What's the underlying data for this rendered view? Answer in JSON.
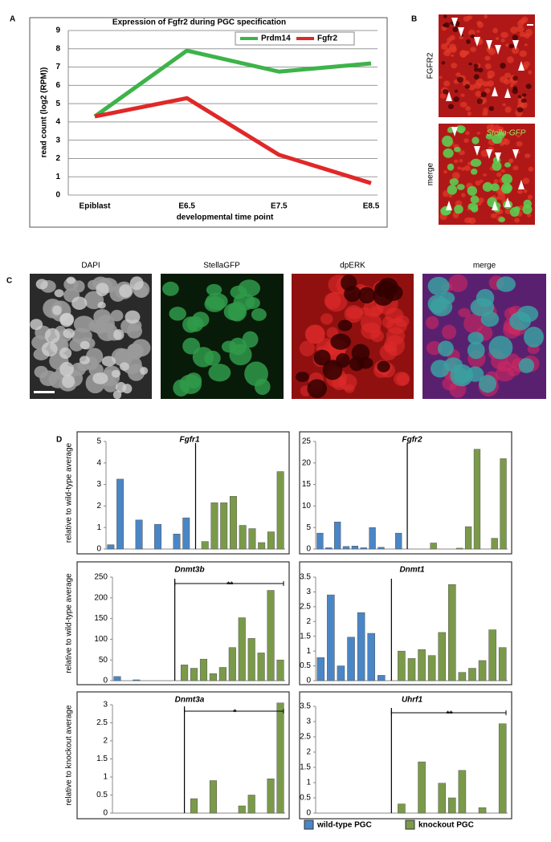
{
  "figure": {
    "panels": [
      "A",
      "B",
      "C",
      "D"
    ],
    "b_labels": [
      "FGFR2",
      "merge",
      "Stella-GFP"
    ],
    "c_labels": [
      "DAPI",
      "StellaGFP",
      "dpERK",
      "merge"
    ],
    "legend": [
      {
        "name": "wild-type PGC",
        "color": "#4a86c6"
      },
      {
        "name": "knockout PGC",
        "color": "#7a9a4a"
      }
    ]
  },
  "chart_data": [
    {
      "type": "line",
      "title": "Expression of Fgfr2 during PGC specification",
      "categories": [
        "Epiblast",
        "E6.5",
        "E7.5",
        "E8.5"
      ],
      "series": [
        {
          "name": "Prdm14",
          "color": "#3db34a",
          "values": [
            4.3,
            7.9,
            6.75,
            7.2
          ]
        },
        {
          "name": "Fgfr2",
          "color": "#e02828",
          "values": [
            4.3,
            5.3,
            2.2,
            0.65
          ]
        }
      ],
      "ylabel": "read count (log2 (RPM))",
      "xlabel": "developmental time point",
      "ylim": [
        0,
        9
      ],
      "yticks": [
        0,
        1,
        2,
        3,
        4,
        5,
        6,
        7,
        8,
        9
      ],
      "grid": true,
      "legend_position": "top right"
    },
    {
      "type": "bar",
      "title": "Fgfr1",
      "ylabel": "relative to wild-type average",
      "series": [
        {
          "color": "#4a86c6",
          "values": [
            0.2,
            3.25,
            0,
            1.35,
            0,
            1.15,
            0,
            0.7,
            1.45
          ]
        },
        {
          "color": "#7a9a4a",
          "values": [
            0.35,
            2.15,
            2.15,
            2.45,
            1.1,
            0.95,
            0.3,
            0.8,
            3.6
          ]
        }
      ],
      "ylim": [
        0,
        5
      ],
      "yticks": [
        0,
        1,
        2,
        3,
        4,
        5
      ]
    },
    {
      "type": "bar",
      "title": "Fgfr2",
      "series": [
        {
          "color": "#4a86c6",
          "values": [
            3.7,
            0.3,
            6.3,
            0.6,
            0.7,
            0.3,
            5,
            0.4,
            0,
            3.7
          ]
        },
        {
          "color": "#7a9a4a",
          "values": [
            0,
            0,
            1.4,
            0,
            0,
            0.2,
            5.2,
            23.2,
            0,
            2.5,
            21
          ]
        }
      ],
      "ylim": [
        0,
        25
      ],
      "yticks": [
        0,
        5,
        10,
        15,
        20,
        25
      ]
    },
    {
      "type": "bar",
      "title": "Dnmt3b",
      "ylabel": "relative to wild-type average",
      "significance": "**",
      "series": [
        {
          "color": "#4a86c6",
          "values": [
            10,
            0,
            2,
            0,
            0,
            0
          ]
        },
        {
          "color": "#7a9a4a",
          "values": [
            38,
            30,
            52,
            17,
            32,
            80,
            152,
            102,
            67,
            218,
            50
          ]
        }
      ],
      "ylim": [
        0,
        250
      ],
      "yticks": [
        0,
        50,
        100,
        150,
        200,
        250
      ]
    },
    {
      "type": "bar",
      "title": "Dnmt1",
      "series": [
        {
          "color": "#4a86c6",
          "values": [
            0.78,
            2.9,
            0.5,
            1.47,
            2.3,
            1.6,
            0.18
          ]
        },
        {
          "color": "#7a9a4a",
          "values": [
            1.0,
            0.75,
            1.05,
            0.85,
            1.63,
            3.25,
            0.28,
            0.42,
            0.68,
            1.72,
            1.12
          ]
        }
      ],
      "ylim": [
        0,
        3.5
      ],
      "yticks": [
        0,
        0.5,
        1,
        1.5,
        2,
        2.5,
        3,
        3.5
      ]
    },
    {
      "type": "bar",
      "title": "Dnmt3a",
      "ylabel": "relative to knockout average",
      "significance": "*",
      "series": [
        {
          "color": "#4a86c6",
          "values": [
            0,
            0,
            0,
            0,
            0,
            0,
            0
          ]
        },
        {
          "color": "#7a9a4a",
          "values": [
            0.4,
            0,
            0.9,
            0,
            0,
            0.2,
            0.5,
            0,
            0.95,
            3.05
          ]
        }
      ],
      "ylim": [
        0,
        3
      ],
      "yticks": [
        0,
        0.5,
        1,
        1.5,
        2,
        2.5,
        3
      ]
    },
    {
      "type": "bar",
      "title": "Uhrf1",
      "significance": "**",
      "series": [
        {
          "color": "#4a86c6",
          "values": [
            0,
            0,
            0,
            0,
            0,
            0,
            0
          ]
        },
        {
          "color": "#7a9a4a",
          "values": [
            0.3,
            0,
            1.68,
            0,
            0.98,
            0.5,
            1.4,
            0,
            0.18,
            0,
            2.93
          ]
        }
      ],
      "ylim": [
        0,
        3.5
      ],
      "yticks": [
        0,
        0.5,
        1,
        1.5,
        2,
        2.5,
        3,
        3.5
      ]
    }
  ]
}
